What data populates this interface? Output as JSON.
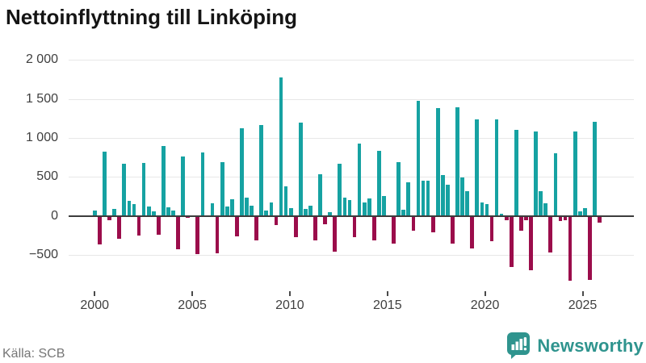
{
  "title": "Nettoinflyttning till Linköping",
  "source": "Källa: SCB",
  "branding": {
    "name": "Newsworthy",
    "icon": "speech-bubble-bar-chart-icon"
  },
  "colors": {
    "positive_bar": "#16a2a2",
    "negative_bar": "#9b0d4b",
    "grid": "#e7e7e7",
    "zero_line": "#3c3c3c",
    "axis_text": "#3f3f3f",
    "title_text": "#151515",
    "source_text": "#767676",
    "brand_teal": "#2f948e",
    "background": "#ffffff"
  },
  "chart_data": {
    "type": "bar",
    "title": "Nettoinflyttning till Linköping",
    "x_unit": "quarter",
    "start_year": 2000,
    "quarters_per_year": 4,
    "x_tick_labels": [
      "2000",
      "2005",
      "2010",
      "2015",
      "2020",
      "2025"
    ],
    "y_ticks": [
      2000,
      1500,
      1000,
      500,
      0,
      -500
    ],
    "y_tick_labels": [
      "2 000",
      "1 500",
      "1 000",
      "500",
      "0",
      "−500"
    ],
    "ylim": [
      -900,
      2100
    ],
    "grid": "horizontal",
    "legend": "none",
    "series": [
      {
        "year": 2000,
        "values": [
          75,
          -360,
          830,
          -40
        ]
      },
      {
        "year": 2001,
        "values": [
          95,
          -285,
          675,
          195
        ]
      },
      {
        "year": 2002,
        "values": [
          155,
          -240,
          685,
          125
        ]
      },
      {
        "year": 2003,
        "values": [
          55,
          -230,
          895,
          115
        ]
      },
      {
        "year": 2004,
        "values": [
          70,
          -420,
          760,
          -10
        ]
      },
      {
        "year": 2005,
        "values": [
          10,
          -480,
          815,
          10
        ]
      },
      {
        "year": 2006,
        "values": [
          165,
          -470,
          695,
          120
        ]
      },
      {
        "year": 2007,
        "values": [
          215,
          -250,
          1130,
          235
        ]
      },
      {
        "year": 2008,
        "values": [
          130,
          -305,
          1170,
          70
        ]
      },
      {
        "year": 2009,
        "values": [
          170,
          -105,
          1775,
          380
        ]
      },
      {
        "year": 2010,
        "values": [
          105,
          -260,
          1200,
          95
        ]
      },
      {
        "year": 2011,
        "values": [
          130,
          -300,
          540,
          -95
        ]
      },
      {
        "year": 2012,
        "values": [
          50,
          -445,
          665,
          240
        ]
      },
      {
        "year": 2013,
        "values": [
          200,
          -265,
          925,
          175
        ]
      },
      {
        "year": 2014,
        "values": [
          230,
          -300,
          835,
          255
        ]
      },
      {
        "year": 2015,
        "values": [
          10,
          -340,
          690,
          85
        ]
      },
      {
        "year": 2016,
        "values": [
          430,
          -175,
          1475,
          450
        ]
      },
      {
        "year": 2017,
        "values": [
          450,
          -200,
          1385,
          530
        ]
      },
      {
        "year": 2018,
        "values": [
          405,
          -340,
          1390,
          495
        ]
      },
      {
        "year": 2019,
        "values": [
          320,
          -405,
          1235,
          170
        ]
      },
      {
        "year": 2020,
        "values": [
          155,
          -315,
          1235,
          30
        ]
      },
      {
        "year": 2021,
        "values": [
          -50,
          -650,
          1105,
          -180
        ]
      },
      {
        "year": 2022,
        "values": [
          -40,
          -685,
          1080,
          320
        ]
      },
      {
        "year": 2023,
        "values": [
          160,
          -460,
          800,
          -60
        ]
      },
      {
        "year": 2024,
        "values": [
          -50,
          -825,
          1080,
          60
        ]
      },
      {
        "year": 2025,
        "values": [
          105,
          -810,
          1205,
          -75
        ]
      }
    ]
  }
}
